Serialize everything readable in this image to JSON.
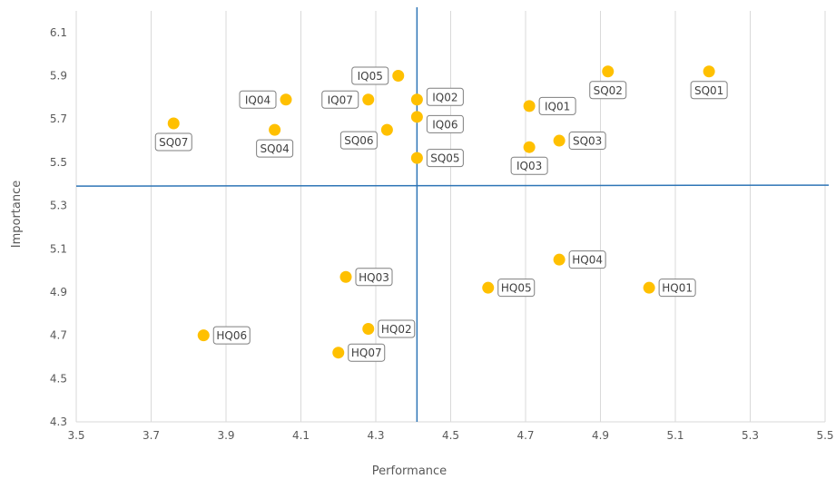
{
  "chart_data": {
    "type": "scatter",
    "title": "",
    "xlabel": "Performance",
    "ylabel": "Importance",
    "xlim": [
      3.5,
      5.5
    ],
    "ylim": [
      4.3,
      6.2
    ],
    "xticks": [
      "3.5",
      "3.7",
      "3.9",
      "4.1",
      "4.3",
      "4.5",
      "4.7",
      "4.9",
      "5.1",
      "5.3",
      "5.5"
    ],
    "yticks": [
      "4.3",
      "4.5",
      "4.7",
      "4.9",
      "5.1",
      "5.3",
      "5.5",
      "5.7",
      "5.9",
      "6.1"
    ],
    "grid": "vertical",
    "reference_lines": {
      "x": 4.41,
      "y": 5.39
    },
    "colors": {
      "points": "#ffc000",
      "reference": "#2e75b6",
      "grid": "#d9d9d9",
      "label_border": "#7f7f7f",
      "text": "#595959"
    },
    "points": [
      {
        "label": "SQ01",
        "x": 5.19,
        "y": 5.92,
        "pos": "below"
      },
      {
        "label": "SQ02",
        "x": 4.92,
        "y": 5.92,
        "pos": "below"
      },
      {
        "label": "SQ03",
        "x": 4.79,
        "y": 5.6,
        "pos": "right"
      },
      {
        "label": "SQ04",
        "x": 4.03,
        "y": 5.65,
        "pos": "below"
      },
      {
        "label": "SQ05",
        "x": 4.41,
        "y": 5.52,
        "pos": "right"
      },
      {
        "label": "SQ06",
        "x": 4.33,
        "y": 5.65,
        "pos": "left-below"
      },
      {
        "label": "SQ07",
        "x": 3.76,
        "y": 5.68,
        "pos": "below"
      },
      {
        "label": "IQ01",
        "x": 4.71,
        "y": 5.76,
        "pos": "right"
      },
      {
        "label": "IQ02",
        "x": 4.41,
        "y": 5.79,
        "pos": "right-up"
      },
      {
        "label": "IQ03",
        "x": 4.71,
        "y": 5.57,
        "pos": "below"
      },
      {
        "label": "IQ04",
        "x": 4.06,
        "y": 5.79,
        "pos": "left"
      },
      {
        "label": "IQ05",
        "x": 4.36,
        "y": 5.9,
        "pos": "left"
      },
      {
        "label": "IQ06",
        "x": 4.41,
        "y": 5.71,
        "pos": "right-down"
      },
      {
        "label": "IQ07",
        "x": 4.28,
        "y": 5.79,
        "pos": "left"
      },
      {
        "label": "HQ01",
        "x": 5.03,
        "y": 4.92,
        "pos": "right"
      },
      {
        "label": "HQ02",
        "x": 4.28,
        "y": 4.73,
        "pos": "right"
      },
      {
        "label": "HQ03",
        "x": 4.22,
        "y": 4.97,
        "pos": "right"
      },
      {
        "label": "HQ04",
        "x": 4.79,
        "y": 5.05,
        "pos": "right"
      },
      {
        "label": "HQ05",
        "x": 4.6,
        "y": 4.92,
        "pos": "right"
      },
      {
        "label": "HQ06",
        "x": 3.84,
        "y": 4.7,
        "pos": "right"
      },
      {
        "label": "HQ07",
        "x": 4.2,
        "y": 4.62,
        "pos": "right"
      }
    ]
  }
}
